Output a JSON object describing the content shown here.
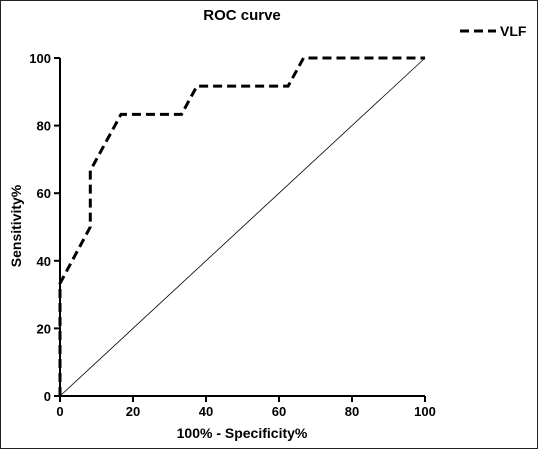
{
  "chart_data": {
    "type": "line",
    "title": "ROC curve",
    "xlabel": "100% - Specificity%",
    "ylabel": "Sensitivity%",
    "xlim": [
      0,
      100
    ],
    "ylim": [
      0,
      100
    ],
    "x_ticks": [
      0,
      20,
      40,
      60,
      80,
      100
    ],
    "y_ticks": [
      0,
      20,
      40,
      60,
      80,
      100
    ],
    "grid": false,
    "legend_position": "top-right",
    "series": [
      {
        "name": "VLF",
        "style": "dashed",
        "color": "#000000",
        "x": [
          0,
          0,
          8.3,
          8.3,
          16.7,
          33.3,
          37.5,
          62.5,
          66.7,
          100
        ],
        "y": [
          0,
          33.3,
          50,
          66.7,
          83.3,
          83.3,
          91.7,
          91.7,
          100,
          100
        ]
      }
    ],
    "reference_line": {
      "style": "solid-thin",
      "color": "#000000",
      "x": [
        0,
        100
      ],
      "y": [
        0,
        100
      ]
    }
  }
}
